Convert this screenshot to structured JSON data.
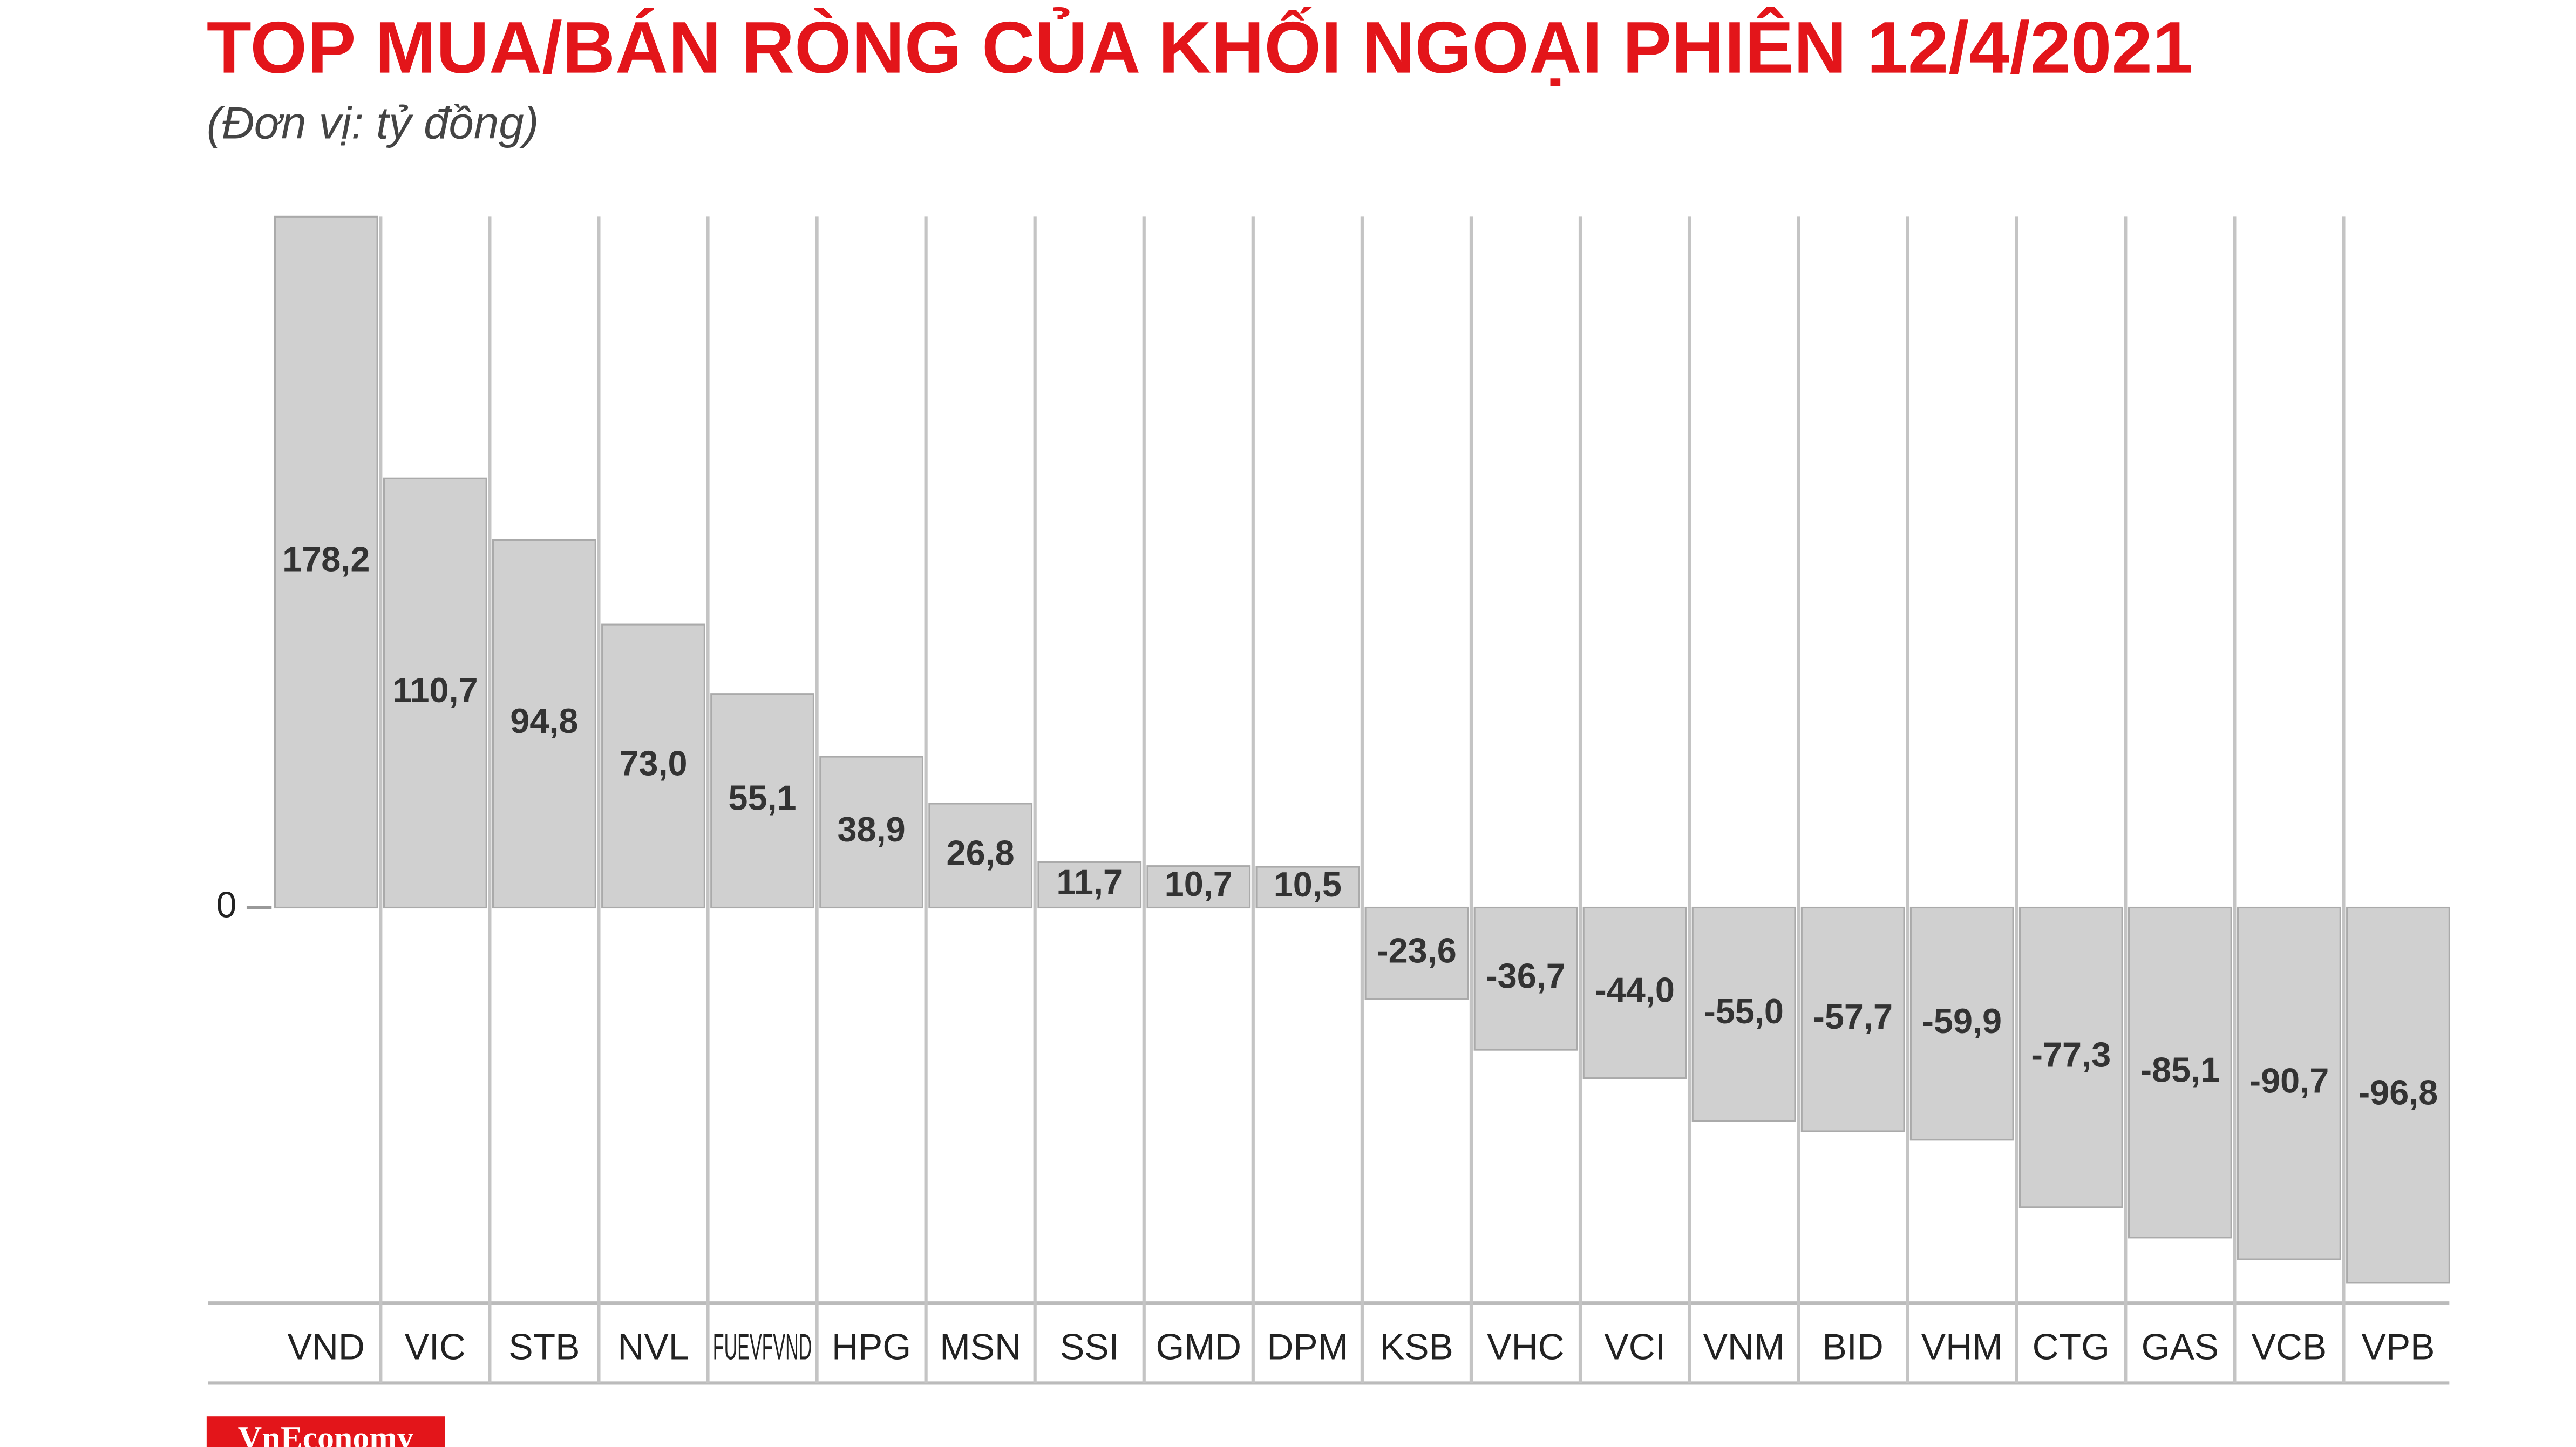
{
  "chart_data": {
    "type": "bar",
    "title": "TOP MUA/BÁN RÒNG CỦA KHỐI NGOẠI PHIÊN 12/4/2021",
    "subtitle": "(Đơn vị: tỷ đồng)",
    "categories": [
      "VND",
      "VIC",
      "STB",
      "NVL",
      "FUEVFVND",
      "HPG",
      "MSN",
      "SSI",
      "GMD",
      "DPM",
      "KSB",
      "VHC",
      "VCI",
      "VNM",
      "BID",
      "VHM",
      "CTG",
      "GAS",
      "VCB",
      "VPB"
    ],
    "values": [
      178.2,
      110.7,
      94.8,
      73.0,
      55.1,
      38.9,
      26.8,
      11.7,
      10.7,
      10.5,
      -23.6,
      -36.7,
      -44.0,
      -55.0,
      -57.7,
      -59.9,
      -77.3,
      -85.1,
      -90.7,
      -96.8
    ],
    "value_labels": [
      "178,2",
      "110,7",
      "94,8",
      "73,0",
      "55,1",
      "38,9",
      "26,8",
      "11,7",
      "10,7",
      "10,5",
      "-23,6",
      "-36,7",
      "-44,0",
      "-55,0",
      "-57,7",
      "-59,9",
      "-77,3",
      "-85,1",
      "-90,7",
      "-96,8"
    ],
    "color": "#d0d0d0",
    "ylim": [
      -102,
      178.2
    ],
    "yticks": [
      0
    ]
  },
  "logo": "VnEconomy"
}
